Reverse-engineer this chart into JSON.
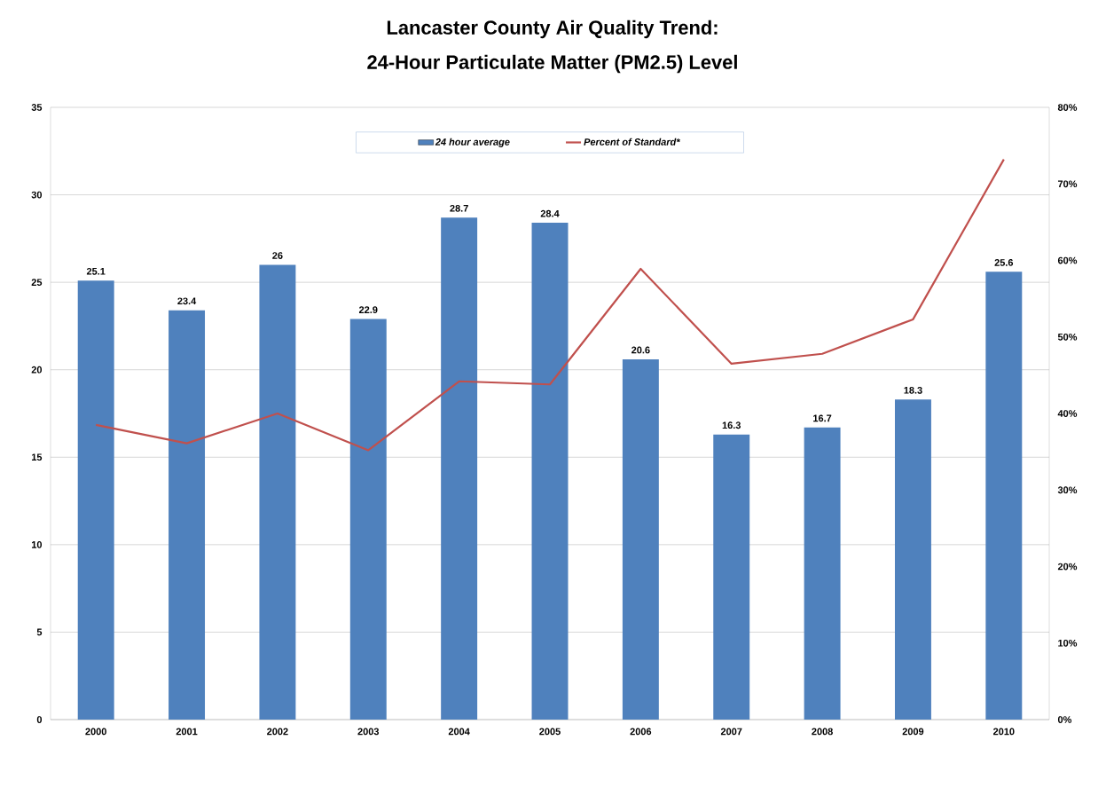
{
  "chart_data": {
    "type": "bar",
    "title": "Lancaster County Air Quality Trend:",
    "subtitle": "24-Hour Particulate Matter (PM2.5) Level",
    "categories": [
      "2000",
      "2001",
      "2002",
      "2003",
      "2004",
      "2005",
      "2006",
      "2007",
      "2008",
      "2009",
      "2010"
    ],
    "series": [
      {
        "name": "24 hour average",
        "color": "#4f81bd",
        "data_labels": true,
        "values": [
          25.1,
          23.4,
          26,
          22.9,
          28.7,
          28.4,
          20.6,
          16.3,
          16.7,
          18.3,
          25.6
        ]
      },
      {
        "name": "Percent of Standard*",
        "type": "line",
        "axis": "y2",
        "color": "#c0504d",
        "values": [
          38.5,
          36.1,
          40.0,
          35.2,
          44.2,
          43.8,
          58.9,
          46.5,
          47.8,
          52.3,
          73.2
        ]
      }
    ],
    "ylim": [
      0,
      35
    ],
    "yticks": [
      0,
      5,
      10,
      15,
      20,
      25,
      30,
      35
    ],
    "y2lim": [
      0,
      80
    ],
    "y2ticks": [
      {
        "value": 0,
        "label": "0%"
      },
      {
        "value": 10,
        "label": "10%"
      },
      {
        "value": 20,
        "label": "20%"
      },
      {
        "value": 30,
        "label": "30%"
      },
      {
        "value": 40,
        "label": "40%"
      },
      {
        "value": 50,
        "label": "50%"
      },
      {
        "value": 60,
        "label": "60%"
      },
      {
        "value": 70,
        "label": "70%"
      },
      {
        "value": 80,
        "label": "80%"
      }
    ],
    "grid": "y",
    "legend": "top",
    "marker": "none",
    "line_style": "solid"
  }
}
